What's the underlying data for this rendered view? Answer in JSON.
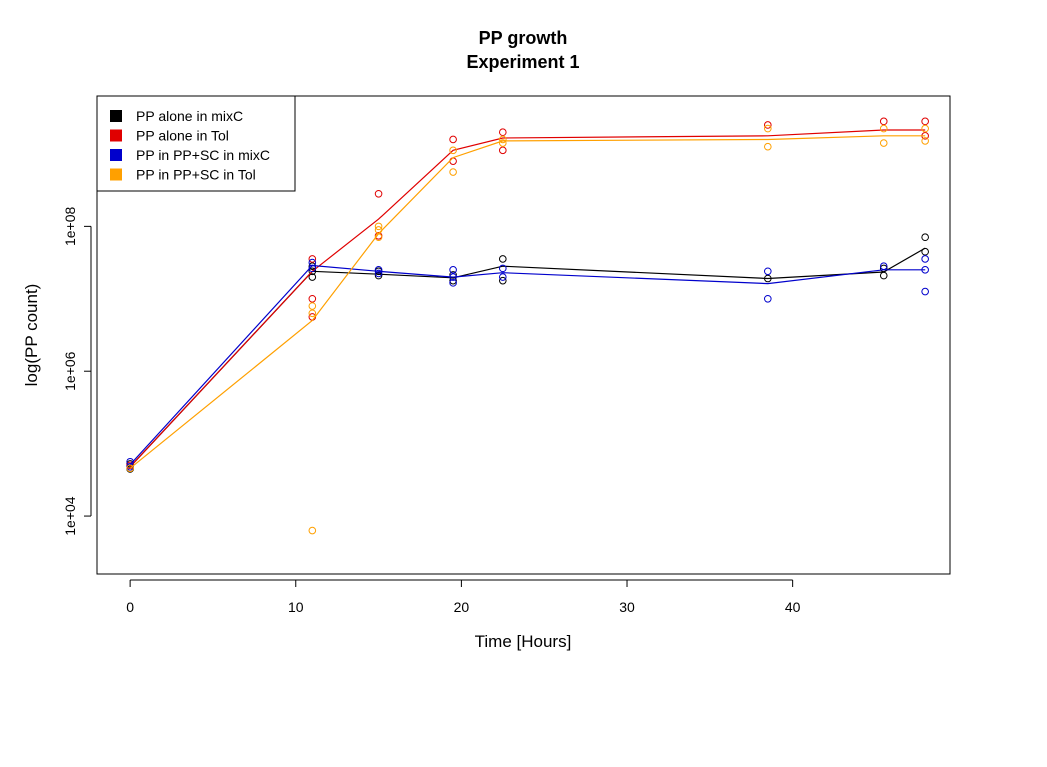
{
  "chart_data": {
    "type": "scatter",
    "title": "PP growth",
    "subtitle": "Experiment 1",
    "xlabel": "Time [Hours]",
    "ylabel": "log(PP count)",
    "xlim": [
      -2,
      49.5
    ],
    "ylim_log10": [
      3.2,
      9.8
    ],
    "y_scale": "log10",
    "x_ticks": [
      0,
      10,
      20,
      30,
      40
    ],
    "y_ticks": [
      {
        "value_log10": 4,
        "label": "1e+04"
      },
      {
        "value_log10": 6,
        "label": "1e+06"
      },
      {
        "value_log10": 8,
        "label": "1e+08"
      }
    ],
    "grid": false,
    "legend": {
      "position": "top-left"
    },
    "series": [
      {
        "name": "PP alone in mixC",
        "color": "#000000",
        "points": [
          [
            0,
            4.65
          ],
          [
            0,
            4.72
          ],
          [
            11,
            7.3
          ],
          [
            11,
            7.45
          ],
          [
            11,
            7.38
          ],
          [
            15,
            7.32
          ],
          [
            15,
            7.38
          ],
          [
            19.5,
            7.25
          ],
          [
            19.5,
            7.33
          ],
          [
            22.5,
            7.55
          ],
          [
            22.5,
            7.25
          ],
          [
            38.5,
            7.28
          ],
          [
            45.5,
            7.32
          ],
          [
            45.5,
            7.42
          ],
          [
            48,
            7.85
          ],
          [
            48,
            7.65
          ]
        ],
        "line": [
          [
            0,
            4.68
          ],
          [
            11,
            7.38
          ],
          [
            15,
            7.34
          ],
          [
            19.5,
            7.29
          ],
          [
            22.5,
            7.45
          ],
          [
            38.5,
            7.28
          ],
          [
            45.5,
            7.37
          ],
          [
            48,
            7.7
          ]
        ]
      },
      {
        "name": "PP alone in Tol",
        "color": "#e00000",
        "points": [
          [
            0,
            4.7
          ],
          [
            11,
            7.55
          ],
          [
            11,
            7.0
          ],
          [
            11,
            6.75
          ],
          [
            15,
            8.45
          ],
          [
            15,
            7.87
          ],
          [
            19.5,
            9.2
          ],
          [
            19.5,
            8.9
          ],
          [
            22.5,
            9.3
          ],
          [
            22.5,
            9.05
          ],
          [
            38.5,
            9.4
          ],
          [
            45.5,
            9.45
          ],
          [
            48,
            9.45
          ],
          [
            48,
            9.25
          ]
        ],
        "line": [
          [
            0,
            4.68
          ],
          [
            11,
            7.38
          ],
          [
            15,
            8.1
          ],
          [
            19.5,
            9.05
          ],
          [
            22.5,
            9.22
          ],
          [
            38.5,
            9.25
          ],
          [
            45.5,
            9.33
          ],
          [
            48,
            9.33
          ]
        ]
      },
      {
        "name": "PP in PP+SC in mixC",
        "color": "#0000cc",
        "points": [
          [
            0,
            4.68
          ],
          [
            0,
            4.75
          ],
          [
            11,
            7.5
          ],
          [
            11,
            7.42
          ],
          [
            15,
            7.35
          ],
          [
            15,
            7.4
          ],
          [
            19.5,
            7.22
          ],
          [
            19.5,
            7.3
          ],
          [
            19.5,
            7.4
          ],
          [
            22.5,
            7.3
          ],
          [
            22.5,
            7.42
          ],
          [
            38.5,
            7.38
          ],
          [
            38.5,
            7.0
          ],
          [
            45.5,
            7.45
          ],
          [
            48,
            7.55
          ],
          [
            48,
            7.4
          ],
          [
            48,
            7.1
          ]
        ],
        "line": [
          [
            0,
            4.71
          ],
          [
            11,
            7.46
          ],
          [
            15,
            7.38
          ],
          [
            19.5,
            7.3
          ],
          [
            22.5,
            7.36
          ],
          [
            38.5,
            7.21
          ],
          [
            45.5,
            7.4
          ],
          [
            48,
            7.4
          ]
        ]
      },
      {
        "name": "PP in PP+SC in Tol",
        "color": "#ffa000",
        "points": [
          [
            0,
            4.66
          ],
          [
            11,
            6.9
          ],
          [
            11,
            6.8
          ],
          [
            11,
            3.8
          ],
          [
            15,
            8.0
          ],
          [
            15,
            7.95
          ],
          [
            15,
            7.85
          ],
          [
            19.5,
            9.05
          ],
          [
            19.5,
            8.75
          ],
          [
            22.5,
            9.2
          ],
          [
            22.5,
            9.15
          ],
          [
            38.5,
            9.35
          ],
          [
            38.5,
            9.1
          ],
          [
            45.5,
            9.35
          ],
          [
            45.5,
            9.15
          ],
          [
            48,
            9.35
          ],
          [
            48,
            9.18
          ]
        ],
        "line": [
          [
            0,
            4.66
          ],
          [
            11,
            6.7
          ],
          [
            15,
            7.9
          ],
          [
            19.5,
            8.95
          ],
          [
            22.5,
            9.18
          ],
          [
            38.5,
            9.2
          ],
          [
            45.5,
            9.25
          ],
          [
            48,
            9.25
          ]
        ]
      }
    ]
  }
}
